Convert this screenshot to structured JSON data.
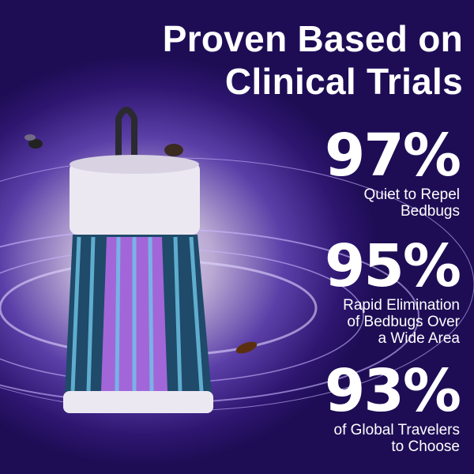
{
  "headline": {
    "line1": "Proven Based on",
    "line2": "Clinical Trials"
  },
  "stats": [
    {
      "value": "97%",
      "desc_lines": [
        "Quiet to Repel",
        "Bedbugs"
      ]
    },
    {
      "value": "95%",
      "desc_lines": [
        "Rapid Elimination",
        "of Bedbugs Over",
        "a Wide Area"
      ]
    },
    {
      "value": "93%",
      "desc_lines": [
        "of Global Travelers",
        "to Choose"
      ]
    }
  ],
  "colors": {
    "background": "#2e1670",
    "glow": "#8a5cff",
    "cage": "#1f4a6a",
    "uv_light": "#d070ff"
  },
  "icons": [
    "mosquito-lamp",
    "fly-icon",
    "bedbug-icon",
    "cockroach-icon"
  ]
}
